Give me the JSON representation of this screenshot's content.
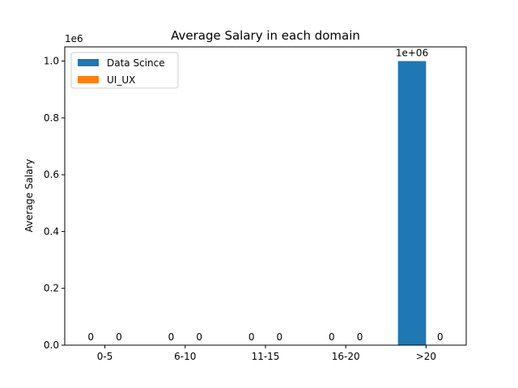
{
  "chart_data": {
    "type": "bar",
    "title": "Average Salary in each domain",
    "xlabel": "",
    "ylabel": "Average Salary",
    "categories": [
      "0-5",
      "6-10",
      "11-15",
      "16-20",
      ">20"
    ],
    "series": [
      {
        "name": "Data Scince",
        "color": "#1f77b4",
        "values": [
          0,
          0,
          0,
          0,
          1000000
        ],
        "labels": [
          "0",
          "0",
          "0",
          "0",
          "1e+06"
        ]
      },
      {
        "name": "UI_UX",
        "color": "#ff7f0e",
        "values": [
          0,
          0,
          0,
          0,
          0
        ],
        "labels": [
          "0",
          "0",
          "0",
          "0",
          "0"
        ]
      }
    ],
    "ylim": [
      0,
      1050000
    ],
    "yticks": [
      0,
      200000,
      400000,
      600000,
      800000,
      1000000
    ],
    "ytick_labels": [
      "0.0",
      "0.2",
      "0.4",
      "0.6",
      "0.8",
      "1.0"
    ],
    "y_offset_text": "1e6",
    "legend": "top-left",
    "grid": false
  }
}
